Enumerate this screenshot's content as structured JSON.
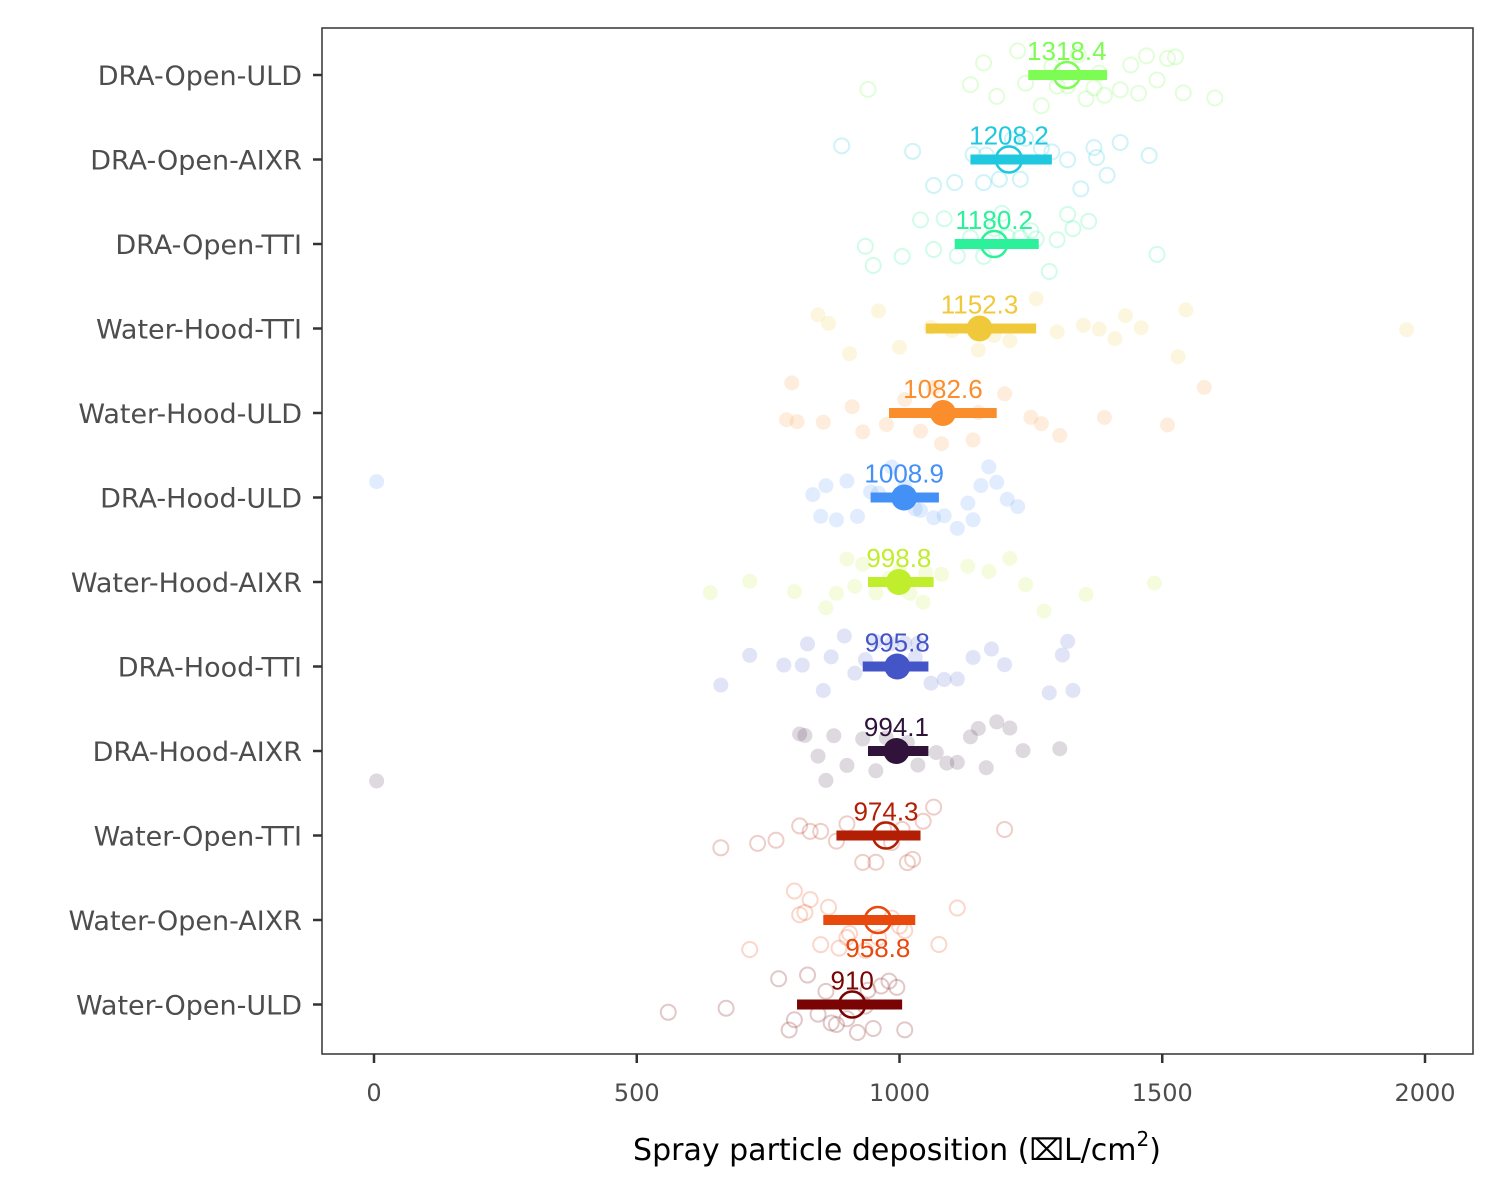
{
  "chart_data": {
    "type": "scatter",
    "xlabel": "Spray particle deposition (⌧L/cm",
    "xlabel_superscript": "2",
    "xlabel_suffix": ")",
    "xlim": [
      -95,
      2095
    ],
    "x_ticks": [
      0,
      500,
      1000,
      1500,
      2000
    ],
    "x_tick_labels": [
      "0",
      "500",
      "1000",
      "1500",
      "2000"
    ],
    "grid": false,
    "legend": "none",
    "categories": [
      "DRA-Open-ULD",
      "DRA-Open-AIXR",
      "DRA-Open-TTI",
      "Water-Hood-TTI",
      "Water-Hood-ULD",
      "DRA-Hood-ULD",
      "Water-Hood-AIXR",
      "DRA-Hood-TTI",
      "DRA-Hood-AIXR",
      "Water-Open-TTI",
      "Water-Open-AIXR",
      "Water-Open-ULD"
    ],
    "series": [
      {
        "category": "DRA-Open-ULD",
        "mean": 1318.4,
        "mean_label": "1318.4",
        "ci": [
          1245,
          1395
        ],
        "color": "#7dfc53",
        "marker": "open",
        "points": [
          1135,
          1160,
          1240,
          1270,
          1300,
          1320,
          1340,
          1355,
          1370,
          1390,
          1420,
          1440,
          1455,
          1470,
          1490,
          1510,
          1525,
          1540,
          1600,
          1185,
          1225,
          1380,
          940,
          1290
        ]
      },
      {
        "category": "DRA-Open-AIXR",
        "mean": 1208.2,
        "mean_label": "1208.2",
        "ci": [
          1135,
          1290
        ],
        "color": "#1fc8de",
        "marker": "open",
        "points": [
          890,
          1025,
          1065,
          1105,
          1140,
          1165,
          1190,
          1215,
          1240,
          1270,
          1290,
          1320,
          1345,
          1375,
          1395,
          1420,
          1475,
          1160,
          1230,
          1370
        ]
      },
      {
        "category": "DRA-Open-TTI",
        "mean": 1180.2,
        "mean_label": "1180.2",
        "ci": [
          1105,
          1265
        ],
        "color": "#2df09b",
        "marker": "open",
        "points": [
          935,
          950,
          1005,
          1040,
          1065,
          1085,
          1110,
          1135,
          1160,
          1180,
          1205,
          1230,
          1260,
          1285,
          1300,
          1320,
          1330,
          1360,
          1490,
          1195,
          1250
        ]
      },
      {
        "category": "Water-Hood-TTI",
        "mean": 1152.3,
        "mean_label": "1152.3",
        "ci": [
          1050,
          1260
        ],
        "color": "#f0c93a",
        "marker": "filled",
        "points": [
          845,
          865,
          960,
          1000,
          1060,
          1100,
          1150,
          1180,
          1210,
          1260,
          1300,
          1350,
          1380,
          1410,
          1430,
          1460,
          1530,
          1545,
          1965,
          905
        ]
      },
      {
        "category": "Water-Hood-ULD",
        "mean": 1082.6,
        "mean_label": "1082.6",
        "ci": [
          980,
          1185
        ],
        "color": "#fb8e2c",
        "marker": "filled",
        "points": [
          785,
          795,
          805,
          855,
          910,
          930,
          975,
          1010,
          1040,
          1080,
          1150,
          1200,
          1250,
          1270,
          1305,
          1390,
          1510,
          1580,
          1140,
          1065
        ]
      },
      {
        "category": "DRA-Hood-ULD",
        "mean": 1008.9,
        "mean_label": "1008.9",
        "ci": [
          945,
          1075
        ],
        "color": "#4390f7",
        "marker": "filled",
        "points": [
          5,
          835,
          850,
          860,
          880,
          900,
          920,
          945,
          960,
          985,
          1010,
          1040,
          1065,
          1085,
          1110,
          1130,
          1140,
          1155,
          1170,
          1185,
          1205,
          1225,
          1030
        ]
      },
      {
        "category": "Water-Hood-AIXR",
        "mean": 998.8,
        "mean_label": "998.8",
        "ci": [
          940,
          1065
        ],
        "color": "#c0ee2d",
        "marker": "filled",
        "points": [
          640,
          715,
          800,
          860,
          880,
          900,
          915,
          930,
          955,
          980,
          1000,
          1020,
          1050,
          1080,
          1130,
          1170,
          1210,
          1240,
          1275,
          1355,
          1485,
          1045
        ]
      },
      {
        "category": "DRA-Hood-TTI",
        "mean": 995.8,
        "mean_label": "995.8",
        "ci": [
          930,
          1055
        ],
        "color": "#4455c8",
        "marker": "filled",
        "points": [
          660,
          715,
          780,
          815,
          825,
          855,
          870,
          895,
          915,
          935,
          955,
          985,
          1010,
          1035,
          1060,
          1085,
          1110,
          1140,
          1175,
          1200,
          1285,
          1310,
          1320,
          1330,
          1030
        ]
      },
      {
        "category": "DRA-Hood-AIXR",
        "mean": 994.1,
        "mean_label": "994.1",
        "ci": [
          940,
          1055
        ],
        "color": "#30123b",
        "marker": "filled",
        "points": [
          5,
          810,
          820,
          845,
          860,
          875,
          900,
          930,
          955,
          975,
          1005,
          1035,
          1070,
          1090,
          1110,
          1135,
          1150,
          1165,
          1185,
          1210,
          1235,
          1305,
          1015
        ]
      },
      {
        "category": "Water-Open-TTI",
        "mean": 974.3,
        "mean_label": "974.3",
        "ci": [
          880,
          1040
        ],
        "color": "#b31f05",
        "marker": "open",
        "points": [
          660,
          730,
          765,
          810,
          830,
          850,
          880,
          900,
          930,
          955,
          985,
          1005,
          1025,
          1045,
          1065,
          1200,
          970,
          1015
        ]
      },
      {
        "category": "Water-Open-AIXR",
        "mean": 958.8,
        "mean_label": "958.8",
        "ci": [
          855,
          1030
        ],
        "color": "#e84a0e",
        "marker": "open",
        "points": [
          715,
          800,
          810,
          820,
          830,
          850,
          865,
          885,
          905,
          935,
          960,
          985,
          1010,
          1075,
          1110,
          900,
          1000
        ]
      },
      {
        "category": "Water-Open-ULD",
        "mean": 910,
        "mean_label": "910",
        "ci": [
          805,
          1005
        ],
        "color": "#7a0403",
        "marker": "open",
        "points": [
          560,
          670,
          770,
          790,
          800,
          825,
          845,
          860,
          880,
          900,
          920,
          935,
          950,
          965,
          980,
          995,
          1010,
          870,
          940
        ]
      }
    ]
  }
}
